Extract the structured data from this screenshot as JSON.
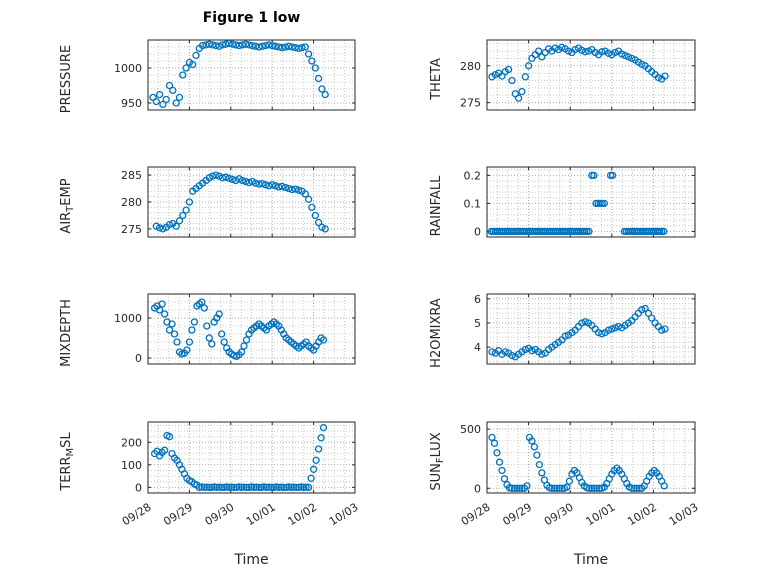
{
  "title": "Figure 1 low",
  "xlabel": "Time",
  "chart_data": {
    "type": "scatter",
    "marker": "open-circle",
    "marker_color": "#0072BD",
    "grid": "dotted",
    "xlim": [
      0,
      5
    ],
    "x_ticks": [
      0,
      1,
      2,
      3,
      4,
      5
    ],
    "x_minor": 0.25,
    "x_tick_labels": [
      "09/28",
      "09/29",
      "09/30",
      "10/01",
      "10/02",
      "10/03"
    ],
    "x_unit": "days since 09/28",
    "plots": [
      {
        "name": "PRESSURE",
        "row": 0,
        "col": 0,
        "ylabel": [
          {
            "t": "PRESSURE",
            "sub": false
          }
        ],
        "ylim": [
          940,
          1040
        ],
        "yticks": [
          950,
          1000
        ],
        "y_minor": 10,
        "x": [
          0.12,
          0.2,
          0.28,
          0.36,
          0.44,
          0.52,
          0.6,
          0.68,
          0.76,
          0.84,
          0.92,
          1,
          1.08,
          1.16,
          1.24,
          1.32,
          1.4,
          1.48,
          1.56,
          1.64,
          1.72,
          1.8,
          1.88,
          1.96,
          2.04,
          2.12,
          2.2,
          2.28,
          2.36,
          2.44,
          2.52,
          2.6,
          2.68,
          2.76,
          2.84,
          2.92,
          3,
          3.08,
          3.16,
          3.24,
          3.32,
          3.4,
          3.48,
          3.56,
          3.64,
          3.72,
          3.8,
          3.88,
          3.96,
          4.04,
          4.12,
          4.2,
          4.28
        ],
        "y": [
          958,
          952,
          962,
          948,
          955,
          975,
          968,
          950,
          958,
          990,
          1000,
          1008,
          1005,
          1018,
          1028,
          1032,
          1033,
          1034,
          1033,
          1032,
          1031,
          1033,
          1034,
          1035,
          1034,
          1033,
          1032,
          1033,
          1034,
          1033,
          1032,
          1031,
          1030,
          1031,
          1032,
          1033,
          1032,
          1031,
          1030,
          1029,
          1030,
          1031,
          1030,
          1029,
          1028,
          1029,
          1030,
          1020,
          1010,
          1000,
          985,
          970,
          962
        ]
      },
      {
        "name": "THETA",
        "row": 0,
        "col": 1,
        "ylabel": [
          {
            "t": "THETA",
            "sub": false
          }
        ],
        "ylim": [
          274,
          283.5
        ],
        "yticks": [
          275,
          280
        ],
        "y_minor": 1,
        "x": [
          0.12,
          0.2,
          0.28,
          0.36,
          0.44,
          0.52,
          0.6,
          0.68,
          0.76,
          0.84,
          0.92,
          1,
          1.08,
          1.16,
          1.24,
          1.32,
          1.4,
          1.48,
          1.56,
          1.64,
          1.72,
          1.8,
          1.88,
          1.96,
          2.04,
          2.12,
          2.2,
          2.28,
          2.36,
          2.44,
          2.52,
          2.6,
          2.68,
          2.76,
          2.84,
          2.92,
          3,
          3.08,
          3.16,
          3.24,
          3.32,
          3.4,
          3.48,
          3.56,
          3.64,
          3.72,
          3.8,
          3.88,
          3.96,
          4.04,
          4.12,
          4.2,
          4.28
        ],
        "y": [
          278.5,
          278.8,
          279,
          278.6,
          279.2,
          279.5,
          278,
          276.2,
          275.6,
          276.5,
          278.5,
          280,
          281,
          281.5,
          282,
          281.2,
          281.8,
          282.3,
          282,
          282.4,
          282.2,
          282.5,
          282.3,
          282,
          281.8,
          282.2,
          282.4,
          282.1,
          281.9,
          282,
          282.2,
          281.8,
          281.5,
          281.9,
          282,
          281.7,
          281.5,
          281.8,
          282,
          281.6,
          281.4,
          281.2,
          281,
          280.8,
          280.5,
          280.2,
          280,
          279.6,
          279.2,
          278.8,
          278.4,
          278.2,
          278.6
        ]
      },
      {
        "name": "AIR_TEMP",
        "row": 1,
        "col": 0,
        "ylabel": [
          {
            "t": "AIR",
            "sub": false
          },
          {
            "t": "T",
            "sub": true
          },
          {
            "t": "EMP",
            "sub": false
          }
        ],
        "ylim": [
          273.5,
          286.5
        ],
        "yticks": [
          275,
          280,
          285
        ],
        "y_minor": 1,
        "x": [
          0.2,
          0.28,
          0.36,
          0.44,
          0.52,
          0.6,
          0.68,
          0.76,
          0.84,
          0.92,
          1,
          1.08,
          1.16,
          1.24,
          1.32,
          1.4,
          1.48,
          1.56,
          1.64,
          1.72,
          1.8,
          1.88,
          1.96,
          2.04,
          2.12,
          2.2,
          2.28,
          2.36,
          2.44,
          2.52,
          2.6,
          2.68,
          2.76,
          2.84,
          2.92,
          3,
          3.08,
          3.16,
          3.24,
          3.32,
          3.4,
          3.48,
          3.56,
          3.64,
          3.72,
          3.8,
          3.88,
          3.96,
          4.04,
          4.12,
          4.2,
          4.28
        ],
        "y": [
          275.5,
          275.2,
          275,
          275.3,
          275.8,
          276,
          275.5,
          276.5,
          277.5,
          278.5,
          280,
          282,
          282.5,
          283,
          283.5,
          284,
          284.5,
          284.8,
          285,
          284.8,
          284.5,
          284.6,
          284.4,
          284.2,
          284,
          284.3,
          284,
          283.8,
          283.6,
          283.8,
          283.5,
          283.3,
          283.4,
          283.2,
          283,
          283.2,
          283,
          282.8,
          282.9,
          282.7,
          282.5,
          282.3,
          282.4,
          282.2,
          282,
          281.5,
          280.5,
          279,
          277.5,
          276.2,
          275.3,
          275
        ]
      },
      {
        "name": "RAINFALL",
        "row": 1,
        "col": 1,
        "ylabel": [
          {
            "t": "RAINFALL",
            "sub": false
          }
        ],
        "ylim": [
          -0.02,
          0.23
        ],
        "yticks": [
          0,
          0.1,
          0.2
        ],
        "y_minor": 0.02,
        "x": [
          0.1,
          0.15,
          0.2,
          0.25,
          0.3,
          0.35,
          0.4,
          0.45,
          0.5,
          0.55,
          0.6,
          0.65,
          0.7,
          0.75,
          0.8,
          0.85,
          0.9,
          0.95,
          1,
          1.05,
          1.1,
          1.15,
          1.2,
          1.25,
          1.3,
          1.35,
          1.4,
          1.45,
          1.5,
          1.55,
          1.6,
          1.65,
          1.7,
          1.75,
          1.8,
          1.85,
          1.9,
          1.95,
          2,
          2.05,
          2.1,
          2.15,
          2.2,
          2.25,
          2.3,
          2.35,
          2.4,
          2.45,
          2.52,
          2.57,
          2.62,
          2.67,
          2.72,
          2.77,
          2.82,
          2.97,
          3.02,
          3.3,
          3.35,
          3.4,
          3.45,
          3.5,
          3.55,
          3.6,
          3.65,
          3.7,
          3.75,
          3.8,
          3.85,
          3.9,
          3.95,
          4,
          4.05,
          4.1,
          4.15,
          4.2,
          4.25
        ],
        "y": [
          0,
          0,
          0,
          0,
          0,
          0,
          0,
          0,
          0,
          0,
          0,
          0,
          0,
          0,
          0,
          0,
          0,
          0,
          0,
          0,
          0,
          0,
          0,
          0,
          0,
          0,
          0,
          0,
          0,
          0,
          0,
          0,
          0,
          0,
          0,
          0,
          0,
          0,
          0,
          0,
          0,
          0,
          0,
          0,
          0,
          0,
          0,
          0,
          0.2,
          0.2,
          0.1,
          0.1,
          0.1,
          0.1,
          0.1,
          0.2,
          0.2,
          0,
          0,
          0,
          0,
          0,
          0,
          0,
          0,
          0,
          0,
          0,
          0,
          0,
          0,
          0,
          0,
          0,
          0,
          0,
          0
        ]
      },
      {
        "name": "MIXDEPTH",
        "row": 2,
        "col": 0,
        "ylabel": [
          {
            "t": "MIXDEPTH",
            "sub": false
          }
        ],
        "ylim": [
          -150,
          1600
        ],
        "yticks": [
          0,
          1000
        ],
        "y_minor": 200,
        "x": [
          0.16,
          0.22,
          0.28,
          0.34,
          0.4,
          0.46,
          0.52,
          0.58,
          0.64,
          0.7,
          0.76,
          0.82,
          0.88,
          0.94,
          1,
          1.06,
          1.12,
          1.18,
          1.24,
          1.3,
          1.36,
          1.42,
          1.48,
          1.54,
          1.6,
          1.66,
          1.72,
          1.78,
          1.84,
          1.9,
          1.96,
          2.02,
          2.08,
          2.14,
          2.2,
          2.26,
          2.32,
          2.38,
          2.44,
          2.5,
          2.56,
          2.62,
          2.68,
          2.74,
          2.8,
          2.86,
          2.92,
          2.98,
          3.04,
          3.1,
          3.16,
          3.22,
          3.28,
          3.34,
          3.4,
          3.46,
          3.52,
          3.58,
          3.64,
          3.7,
          3.76,
          3.82,
          3.88,
          3.94,
          4,
          4.06,
          4.12,
          4.18,
          4.24
        ],
        "y": [
          1250,
          1300,
          1200,
          1350,
          1100,
          900,
          700,
          850,
          600,
          400,
          150,
          100,
          120,
          200,
          400,
          700,
          900,
          1300,
          1350,
          1400,
          1250,
          800,
          500,
          350,
          900,
          1000,
          1100,
          600,
          400,
          250,
          150,
          100,
          60,
          40,
          80,
          150,
          300,
          450,
          600,
          700,
          750,
          800,
          850,
          800,
          750,
          700,
          800,
          850,
          900,
          850,
          800,
          700,
          600,
          500,
          450,
          400,
          350,
          300,
          250,
          300,
          350,
          400,
          300,
          250,
          200,
          300,
          400,
          500,
          450
        ]
      },
      {
        "name": "H2OMIXRA",
        "row": 2,
        "col": 1,
        "ylabel": [
          {
            "t": "H2OMIXRA",
            "sub": false
          }
        ],
        "ylim": [
          3.3,
          6.2
        ],
        "yticks": [
          4,
          5,
          6
        ],
        "y_minor": 0.2,
        "x": [
          0.12,
          0.2,
          0.28,
          0.36,
          0.44,
          0.52,
          0.6,
          0.68,
          0.76,
          0.84,
          0.92,
          1,
          1.08,
          1.16,
          1.24,
          1.32,
          1.4,
          1.48,
          1.56,
          1.64,
          1.72,
          1.8,
          1.88,
          1.96,
          2.04,
          2.12,
          2.2,
          2.28,
          2.36,
          2.44,
          2.52,
          2.6,
          2.68,
          2.76,
          2.84,
          2.92,
          3,
          3.08,
          3.16,
          3.24,
          3.32,
          3.4,
          3.48,
          3.56,
          3.64,
          3.72,
          3.8,
          3.88,
          3.96,
          4.04,
          4.12,
          4.2,
          4.28
        ],
        "y": [
          3.8,
          3.75,
          3.85,
          3.7,
          3.8,
          3.75,
          3.65,
          3.6,
          3.7,
          3.8,
          3.9,
          3.95,
          3.85,
          3.9,
          3.8,
          3.7,
          3.75,
          3.9,
          4,
          4.1,
          4.2,
          4.3,
          4.45,
          4.5,
          4.6,
          4.7,
          4.85,
          5,
          5.05,
          5,
          4.9,
          4.75,
          4.6,
          4.55,
          4.6,
          4.7,
          4.75,
          4.8,
          4.85,
          4.8,
          4.9,
          5,
          5.1,
          5.25,
          5.4,
          5.55,
          5.6,
          5.4,
          5.2,
          5,
          4.85,
          4.7,
          4.75
        ]
      },
      {
        "name": "TERR_MSL",
        "row": 3,
        "col": 0,
        "ylabel": [
          {
            "t": "TERR",
            "sub": false
          },
          {
            "t": "M",
            "sub": true
          },
          {
            "t": "SL",
            "sub": false
          }
        ],
        "ylim": [
          -25,
          290
        ],
        "yticks": [
          0,
          100,
          200
        ],
        "y_minor": 25,
        "x": [
          0.16,
          0.22,
          0.28,
          0.34,
          0.4,
          0.46,
          0.52,
          0.58,
          0.64,
          0.7,
          0.76,
          0.82,
          0.88,
          0.94,
          1,
          1.06,
          1.12,
          1.18,
          1.24,
          1.3,
          1.36,
          1.42,
          1.48,
          1.54,
          1.6,
          1.66,
          1.72,
          1.78,
          1.84,
          1.9,
          1.96,
          2.02,
          2.08,
          2.14,
          2.2,
          2.26,
          2.32,
          2.38,
          2.44,
          2.5,
          2.56,
          2.62,
          2.68,
          2.74,
          2.8,
          2.86,
          2.92,
          2.98,
          3.04,
          3.1,
          3.16,
          3.22,
          3.28,
          3.34,
          3.4,
          3.46,
          3.52,
          3.58,
          3.64,
          3.7,
          3.76,
          3.82,
          3.88,
          3.94,
          4,
          4.06,
          4.12,
          4.18,
          4.24
        ],
        "y": [
          150,
          160,
          140,
          155,
          165,
          230,
          225,
          150,
          130,
          120,
          100,
          80,
          60,
          40,
          30,
          25,
          15,
          10,
          0,
          2,
          0,
          1,
          0,
          0,
          2,
          0,
          1,
          0,
          0,
          2,
          0,
          1,
          0,
          0,
          2,
          0,
          1,
          0,
          0,
          2,
          0,
          1,
          0,
          0,
          2,
          0,
          1,
          0,
          0,
          2,
          0,
          1,
          0,
          0,
          2,
          0,
          1,
          0,
          0,
          2,
          0,
          1,
          0,
          40,
          80,
          120,
          170,
          220,
          265
        ]
      },
      {
        "name": "SUN_FLUX",
        "row": 3,
        "col": 1,
        "ylabel": [
          {
            "t": "SUN",
            "sub": false
          },
          {
            "t": "F",
            "sub": true
          },
          {
            "t": "LUX",
            "sub": false
          }
        ],
        "ylim": [
          -40,
          560
        ],
        "yticks": [
          0,
          500
        ],
        "y_minor": 100,
        "x": [
          0.12,
          0.18,
          0.24,
          0.3,
          0.36,
          0.42,
          0.48,
          0.54,
          0.6,
          0.66,
          0.72,
          0.78,
          0.84,
          0.9,
          0.96,
          1.02,
          1.08,
          1.14,
          1.2,
          1.26,
          1.32,
          1.38,
          1.44,
          1.5,
          1.56,
          1.62,
          1.68,
          1.74,
          1.8,
          1.86,
          1.92,
          1.98,
          2.04,
          2.1,
          2.16,
          2.22,
          2.28,
          2.34,
          2.4,
          2.46,
          2.52,
          2.58,
          2.64,
          2.7,
          2.76,
          2.82,
          2.88,
          2.94,
          3,
          3.06,
          3.12,
          3.18,
          3.24,
          3.3,
          3.36,
          3.42,
          3.48,
          3.54,
          3.6,
          3.66,
          3.72,
          3.78,
          3.84,
          3.9,
          3.96,
          4.02,
          4.08,
          4.14,
          4.2,
          4.26
        ],
        "y": [
          430,
          380,
          300,
          220,
          150,
          80,
          30,
          5,
          0,
          0,
          0,
          0,
          0,
          0,
          20,
          430,
          400,
          350,
          280,
          200,
          130,
          70,
          25,
          5,
          0,
          0,
          0,
          0,
          0,
          0,
          10,
          60,
          120,
          150,
          130,
          90,
          50,
          20,
          5,
          0,
          0,
          0,
          0,
          0,
          0,
          10,
          40,
          80,
          120,
          150,
          170,
          150,
          120,
          80,
          40,
          10,
          0,
          0,
          0,
          0,
          0,
          20,
          60,
          100,
          130,
          150,
          130,
          100,
          60,
          20
        ]
      }
    ]
  }
}
